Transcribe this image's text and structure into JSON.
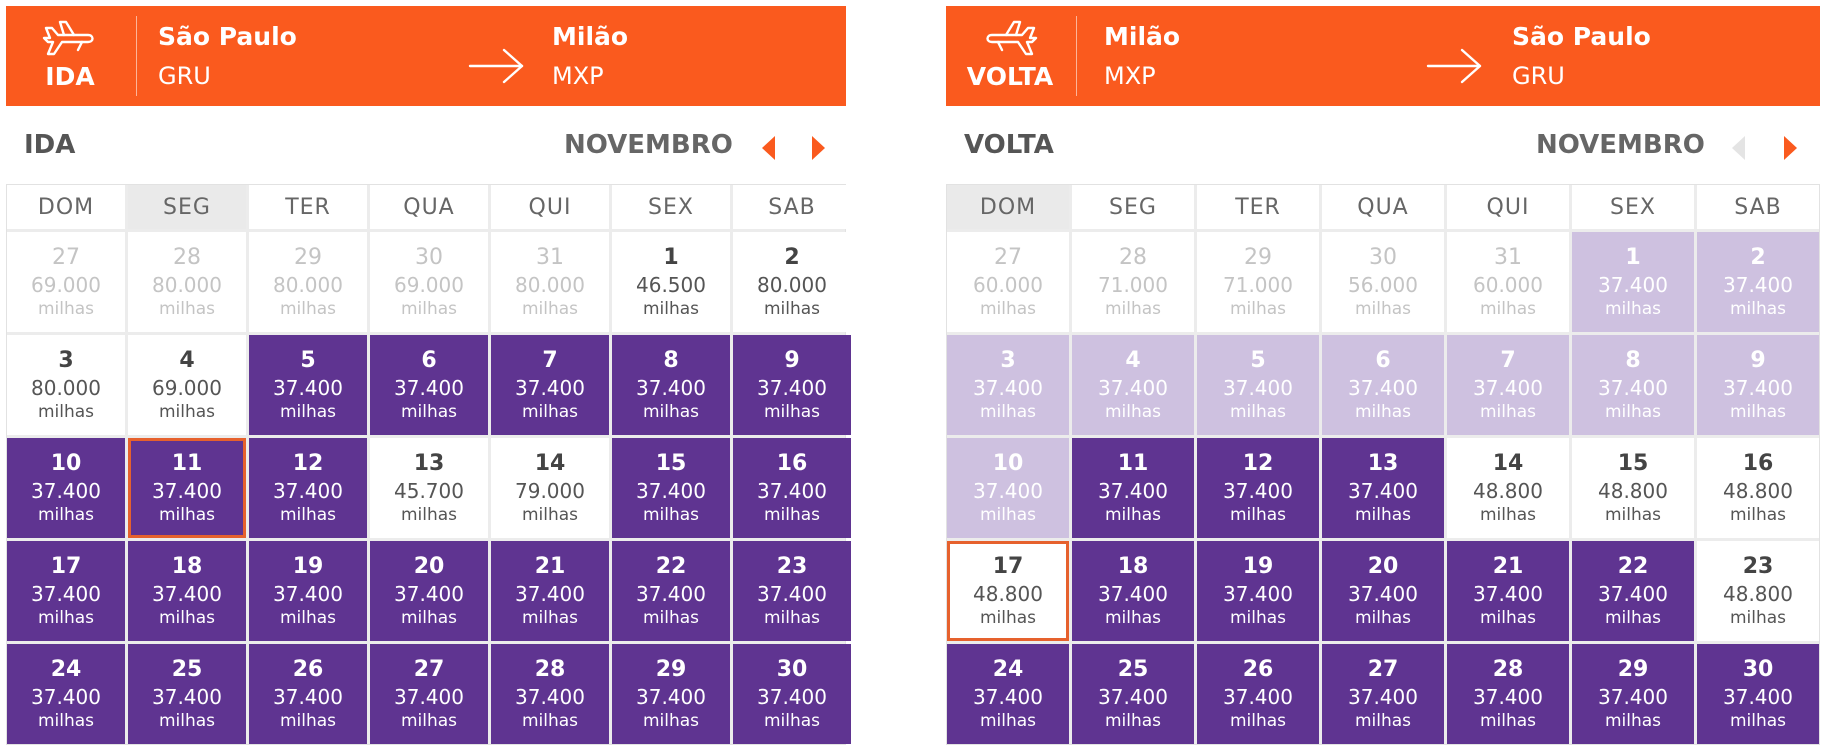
{
  "ida": {
    "label": "IDA",
    "from_city": "São Paulo",
    "from_code": "GRU",
    "to_city": "Milão",
    "to_code": "MXP",
    "title": "IDA",
    "month": "NOVEMBRO",
    "weekdays": [
      "DOM",
      "SEG",
      "TER",
      "QUA",
      "QUI",
      "SEX",
      "SAB"
    ],
    "highlight_weekday": 1,
    "days": [
      {
        "day": "27",
        "price": "69.000",
        "unit": "milhas",
        "state": "past"
      },
      {
        "day": "28",
        "price": "80.000",
        "unit": "milhas",
        "state": "past"
      },
      {
        "day": "29",
        "price": "80.000",
        "unit": "milhas",
        "state": "past"
      },
      {
        "day": "30",
        "price": "69.000",
        "unit": "milhas",
        "state": "past"
      },
      {
        "day": "31",
        "price": "80.000",
        "unit": "milhas",
        "state": "past"
      },
      {
        "day": "1",
        "price": "46.500",
        "unit": "milhas",
        "state": "normal"
      },
      {
        "day": "2",
        "price": "80.000",
        "unit": "milhas",
        "state": "normal"
      },
      {
        "day": "3",
        "price": "80.000",
        "unit": "milhas",
        "state": "normal"
      },
      {
        "day": "4",
        "price": "69.000",
        "unit": "milhas",
        "state": "normal"
      },
      {
        "day": "5",
        "price": "37.400",
        "unit": "milhas",
        "state": "cheap"
      },
      {
        "day": "6",
        "price": "37.400",
        "unit": "milhas",
        "state": "cheap"
      },
      {
        "day": "7",
        "price": "37.400",
        "unit": "milhas",
        "state": "cheap"
      },
      {
        "day": "8",
        "price": "37.400",
        "unit": "milhas",
        "state": "cheap"
      },
      {
        "day": "9",
        "price": "37.400",
        "unit": "milhas",
        "state": "cheap"
      },
      {
        "day": "10",
        "price": "37.400",
        "unit": "milhas",
        "state": "cheap"
      },
      {
        "day": "11",
        "price": "37.400",
        "unit": "milhas",
        "state": "cheap",
        "selected": true
      },
      {
        "day": "12",
        "price": "37.400",
        "unit": "milhas",
        "state": "cheap"
      },
      {
        "day": "13",
        "price": "45.700",
        "unit": "milhas",
        "state": "normal"
      },
      {
        "day": "14",
        "price": "79.000",
        "unit": "milhas",
        "state": "normal"
      },
      {
        "day": "15",
        "price": "37.400",
        "unit": "milhas",
        "state": "cheap"
      },
      {
        "day": "16",
        "price": "37.400",
        "unit": "milhas",
        "state": "cheap"
      },
      {
        "day": "17",
        "price": "37.400",
        "unit": "milhas",
        "state": "cheap"
      },
      {
        "day": "18",
        "price": "37.400",
        "unit": "milhas",
        "state": "cheap"
      },
      {
        "day": "19",
        "price": "37.400",
        "unit": "milhas",
        "state": "cheap"
      },
      {
        "day": "20",
        "price": "37.400",
        "unit": "milhas",
        "state": "cheap"
      },
      {
        "day": "21",
        "price": "37.400",
        "unit": "milhas",
        "state": "cheap"
      },
      {
        "day": "22",
        "price": "37.400",
        "unit": "milhas",
        "state": "cheap"
      },
      {
        "day": "23",
        "price": "37.400",
        "unit": "milhas",
        "state": "cheap"
      },
      {
        "day": "24",
        "price": "37.400",
        "unit": "milhas",
        "state": "cheap"
      },
      {
        "day": "25",
        "price": "37.400",
        "unit": "milhas",
        "state": "cheap"
      },
      {
        "day": "26",
        "price": "37.400",
        "unit": "milhas",
        "state": "cheap"
      },
      {
        "day": "27",
        "price": "37.400",
        "unit": "milhas",
        "state": "cheap"
      },
      {
        "day": "28",
        "price": "37.400",
        "unit": "milhas",
        "state": "cheap"
      },
      {
        "day": "29",
        "price": "37.400",
        "unit": "milhas",
        "state": "cheap"
      },
      {
        "day": "30",
        "price": "37.400",
        "unit": "milhas",
        "state": "cheap"
      }
    ]
  },
  "volta": {
    "label": "VOLTA",
    "from_city": "Milão",
    "from_code": "MXP",
    "to_city": "São Paulo",
    "to_code": "GRU",
    "title": "VOLTA",
    "month": "NOVEMBRO",
    "weekdays": [
      "DOM",
      "SEG",
      "TER",
      "QUA",
      "QUI",
      "SEX",
      "SAB"
    ],
    "highlight_weekday": 0,
    "days": [
      {
        "day": "27",
        "price": "60.000",
        "unit": "milhas",
        "state": "past"
      },
      {
        "day": "28",
        "price": "71.000",
        "unit": "milhas",
        "state": "past"
      },
      {
        "day": "29",
        "price": "71.000",
        "unit": "milhas",
        "state": "past"
      },
      {
        "day": "30",
        "price": "56.000",
        "unit": "milhas",
        "state": "past"
      },
      {
        "day": "31",
        "price": "60.000",
        "unit": "milhas",
        "state": "past"
      },
      {
        "day": "1",
        "price": "37.400",
        "unit": "milhas",
        "state": "blocked"
      },
      {
        "day": "2",
        "price": "37.400",
        "unit": "milhas",
        "state": "blocked"
      },
      {
        "day": "3",
        "price": "37.400",
        "unit": "milhas",
        "state": "blocked"
      },
      {
        "day": "4",
        "price": "37.400",
        "unit": "milhas",
        "state": "blocked"
      },
      {
        "day": "5",
        "price": "37.400",
        "unit": "milhas",
        "state": "blocked"
      },
      {
        "day": "6",
        "price": "37.400",
        "unit": "milhas",
        "state": "blocked"
      },
      {
        "day": "7",
        "price": "37.400",
        "unit": "milhas",
        "state": "blocked"
      },
      {
        "day": "8",
        "price": "37.400",
        "unit": "milhas",
        "state": "blocked"
      },
      {
        "day": "9",
        "price": "37.400",
        "unit": "milhas",
        "state": "blocked"
      },
      {
        "day": "10",
        "price": "37.400",
        "unit": "milhas",
        "state": "blocked"
      },
      {
        "day": "11",
        "price": "37.400",
        "unit": "milhas",
        "state": "cheap"
      },
      {
        "day": "12",
        "price": "37.400",
        "unit": "milhas",
        "state": "cheap"
      },
      {
        "day": "13",
        "price": "37.400",
        "unit": "milhas",
        "state": "cheap"
      },
      {
        "day": "14",
        "price": "48.800",
        "unit": "milhas",
        "state": "normal"
      },
      {
        "day": "15",
        "price": "48.800",
        "unit": "milhas",
        "state": "normal"
      },
      {
        "day": "16",
        "price": "48.800",
        "unit": "milhas",
        "state": "normal"
      },
      {
        "day": "17",
        "price": "48.800",
        "unit": "milhas",
        "state": "normal",
        "selected": true
      },
      {
        "day": "18",
        "price": "37.400",
        "unit": "milhas",
        "state": "cheap"
      },
      {
        "day": "19",
        "price": "37.400",
        "unit": "milhas",
        "state": "cheap"
      },
      {
        "day": "20",
        "price": "37.400",
        "unit": "milhas",
        "state": "cheap"
      },
      {
        "day": "21",
        "price": "37.400",
        "unit": "milhas",
        "state": "cheap"
      },
      {
        "day": "22",
        "price": "37.400",
        "unit": "milhas",
        "state": "cheap"
      },
      {
        "day": "23",
        "price": "48.800",
        "unit": "milhas",
        "state": "normal"
      },
      {
        "day": "24",
        "price": "37.400",
        "unit": "milhas",
        "state": "cheap"
      },
      {
        "day": "25",
        "price": "37.400",
        "unit": "milhas",
        "state": "cheap"
      },
      {
        "day": "26",
        "price": "37.400",
        "unit": "milhas",
        "state": "cheap"
      },
      {
        "day": "27",
        "price": "37.400",
        "unit": "milhas",
        "state": "cheap"
      },
      {
        "day": "28",
        "price": "37.400",
        "unit": "milhas",
        "state": "cheap"
      },
      {
        "day": "29",
        "price": "37.400",
        "unit": "milhas",
        "state": "cheap"
      },
      {
        "day": "30",
        "price": "37.400",
        "unit": "milhas",
        "state": "cheap"
      }
    ]
  },
  "colors": {
    "header_orange": "#fa5a1e",
    "cheap_purple": "#5f3491",
    "blocked_lavender": "#cec1e0",
    "selected_outline": "#e6612d"
  },
  "icons": {
    "plane": "airplane-icon",
    "arrow": "arrow-right-icon",
    "prev": "triangle-left-icon",
    "next": "triangle-right-icon"
  }
}
